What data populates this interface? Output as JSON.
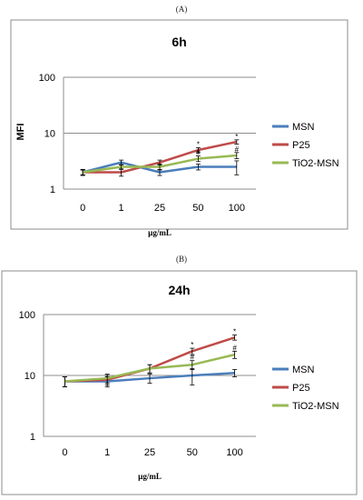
{
  "chart_data": [
    {
      "panel_label": "(A)",
      "type": "line",
      "title": "6h",
      "xlabel": "µg/mL",
      "ylabel": "MFI",
      "yscale": "log",
      "ylim": [
        1,
        100
      ],
      "yticks": [
        "1",
        "10",
        "100"
      ],
      "categories": [
        "0",
        "1",
        "25",
        "50",
        "100"
      ],
      "legend_position": "right",
      "grid": true,
      "series": [
        {
          "name": "MSN",
          "color": "#4a7ebb",
          "values": [
            2.0,
            3.0,
            2.0,
            2.5,
            2.5
          ],
          "err": [
            0.25,
            0.3,
            0.25,
            0.3,
            0.7
          ],
          "marks": [
            "",
            "",
            "",
            "",
            ""
          ]
        },
        {
          "name": "P25",
          "color": "#be4b48",
          "values": [
            2.0,
            2.0,
            3.0,
            5.0,
            7.0
          ],
          "err": [
            0.2,
            0.3,
            0.3,
            0.5,
            0.6
          ],
          "marks": [
            "",
            "",
            "",
            "*",
            "*"
          ]
        },
        {
          "name": "TiO2-MSN",
          "color": "#98b954",
          "values": [
            2.0,
            2.5,
            2.5,
            3.5,
            4.0
          ],
          "err": [
            0.2,
            0.25,
            0.3,
            0.4,
            0.5
          ],
          "marks": [
            "",
            "",
            "",
            "#",
            "#"
          ]
        }
      ]
    },
    {
      "panel_label": "(B)",
      "type": "line",
      "title": "24h",
      "xlabel": "µg/mL",
      "ylabel": "",
      "yscale": "log",
      "ylim": [
        1,
        100
      ],
      "yticks": [
        "1",
        "10",
        "100"
      ],
      "categories": [
        "0",
        "1",
        "25",
        "50",
        "100"
      ],
      "legend_position": "right",
      "grid": true,
      "series": [
        {
          "name": "MSN",
          "color": "#4a7ebb",
          "values": [
            8.0,
            8.0,
            9.0,
            10.0,
            11.0
          ],
          "err": [
            1.5,
            1.5,
            1.5,
            3.0,
            1.5
          ],
          "marks": [
            "",
            "",
            "",
            "",
            ""
          ]
        },
        {
          "name": "P25",
          "color": "#be4b48",
          "values": [
            8.0,
            8.5,
            13.0,
            25.0,
            42.0
          ],
          "err": [
            1.5,
            1.5,
            2.0,
            3.0,
            4.0
          ],
          "marks": [
            "",
            "",
            "",
            "*",
            "*"
          ]
        },
        {
          "name": "TiO2-MSN",
          "color": "#98b954",
          "values": [
            8.0,
            9.0,
            13.0,
            15.0,
            22.0
          ],
          "err": [
            1.5,
            1.5,
            2.0,
            2.5,
            3.0
          ],
          "marks": [
            "",
            "",
            "",
            "#",
            "#"
          ]
        }
      ]
    }
  ]
}
